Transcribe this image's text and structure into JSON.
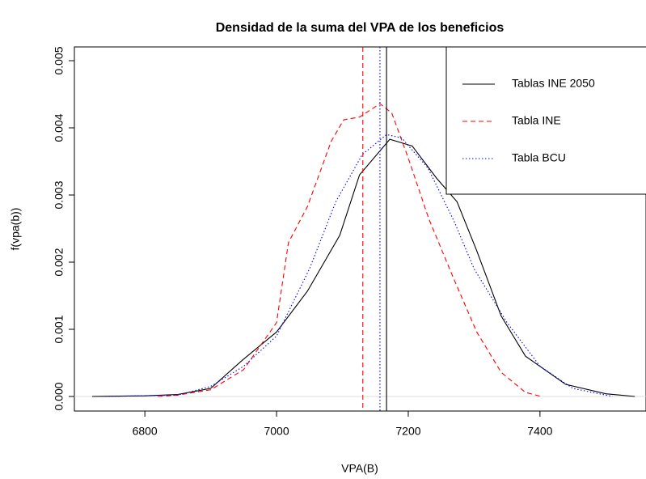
{
  "chart_data": {
    "type": "line",
    "title": "Densidad de la suma del VPA de los beneficios",
    "xlabel": "VPA(B)",
    "ylabel": "f(vpa(b))",
    "xlim": [
      6693,
      7561
    ],
    "ylim": [
      -0.000217,
      0.005205
    ],
    "xticks": [
      6800,
      7000,
      7200,
      7400
    ],
    "yticks": [
      {
        "value": 0,
        "label": "0.000"
      },
      {
        "value": 0.001,
        "label": "0.001"
      },
      {
        "value": 0.002,
        "label": "0.002"
      },
      {
        "value": 0.003,
        "label": "0.003"
      },
      {
        "value": 0.004,
        "label": "0.004"
      },
      {
        "value": 0.005,
        "label": "0.005"
      }
    ],
    "hline": 0,
    "legend": "topright",
    "series": [
      {
        "name": "Tablas INE 2050",
        "color": "#000000",
        "dash": "solid",
        "x": [
          6720,
          6800,
          6850,
          6900,
          6948,
          7000,
          7047,
          7096,
          7126,
          7172,
          7206,
          7243,
          7274,
          7304,
          7341,
          7378,
          7439,
          7500,
          7544
        ],
        "values": [
          0,
          1e-05,
          3e-05,
          0.00012,
          0.00054,
          0.00096,
          0.00157,
          0.0024,
          0.0033,
          0.00383,
          0.00373,
          0.00325,
          0.0029,
          0.00217,
          0.0012,
          0.0006,
          0.00018,
          4e-05,
          0
        ]
      },
      {
        "name": "Tabla INE",
        "color": "#ff0000",
        "dash": "dashed",
        "x": [
          6820,
          6850,
          6900,
          6950,
          7000,
          7018,
          7047,
          7083,
          7102,
          7126,
          7157,
          7175,
          7200,
          7231,
          7267,
          7304,
          7341,
          7378,
          7402
        ],
        "values": [
          0,
          2e-05,
          0.0001,
          0.0004,
          0.0011,
          0.00229,
          0.00283,
          0.0038,
          0.00412,
          0.00416,
          0.00436,
          0.00422,
          0.00355,
          0.00265,
          0.0018,
          0.00096,
          0.00036,
          6e-05,
          0
        ]
      },
      {
        "name": "Tabla BCU",
        "color": "#0000ff",
        "dash": "dotted",
        "x": [
          6740,
          6850,
          6900,
          6950,
          7000,
          7050,
          7090,
          7130,
          7167,
          7190,
          7230,
          7270,
          7300,
          7350,
          7400,
          7450,
          7510
        ],
        "values": [
          0,
          2e-05,
          0.00015,
          0.00045,
          0.0009,
          0.0019,
          0.0029,
          0.0036,
          0.0039,
          0.00385,
          0.0034,
          0.0026,
          0.0019,
          0.0011,
          0.00045,
          0.00012,
          0
        ]
      }
    ],
    "vlines": [
      {
        "value": 7167,
        "color": "#000000",
        "dash": "solid"
      },
      {
        "value": 7131,
        "color": "#ff0000",
        "dash": "dashed"
      },
      {
        "value": 7157,
        "color": "#0000ff",
        "dash": "dotted"
      }
    ]
  }
}
